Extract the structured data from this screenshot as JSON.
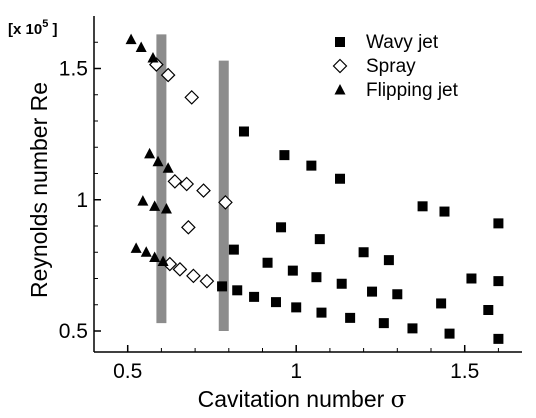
{
  "chart_data": {
    "type": "scatter",
    "xlabel": "Cavitation number",
    "xlabel_symbol": "σ",
    "ylabel": "Reynolds number  Re",
    "y_multiplier": {
      "prefix": "[x 10",
      "exponent": "5",
      "suffix": " ]"
    },
    "xlim": [
      0.4,
      1.67
    ],
    "ylim": [
      0.42,
      1.7
    ],
    "xticks": [
      0.5,
      1,
      1.5
    ],
    "xtick_labels": [
      "0.5",
      "1",
      "1.5"
    ],
    "yticks": [
      0.5,
      1,
      1.5
    ],
    "ytick_labels": [
      "0.5",
      "1",
      "1.5"
    ],
    "grid": false,
    "legend_position": "top-right",
    "bands": [
      {
        "x": 0.6,
        "y_from": 0.53,
        "y_to": 1.63
      },
      {
        "x": 0.785,
        "y_from": 0.5,
        "y_to": 1.53
      }
    ],
    "series": [
      {
        "name": "Wavy jet",
        "marker": "square-filled",
        "points": [
          [
            0.845,
            1.26
          ],
          [
            0.965,
            1.17
          ],
          [
            1.045,
            1.13
          ],
          [
            1.13,
            1.08
          ],
          [
            1.375,
            0.975
          ],
          [
            1.44,
            0.955
          ],
          [
            1.6,
            0.91
          ],
          [
            0.955,
            0.895
          ],
          [
            1.07,
            0.85
          ],
          [
            1.2,
            0.8
          ],
          [
            1.275,
            0.77
          ],
          [
            0.815,
            0.81
          ],
          [
            0.915,
            0.76
          ],
          [
            0.99,
            0.73
          ],
          [
            1.06,
            0.705
          ],
          [
            1.135,
            0.68
          ],
          [
            1.225,
            0.65
          ],
          [
            1.52,
            0.7
          ],
          [
            1.6,
            0.69
          ],
          [
            0.78,
            0.67
          ],
          [
            0.825,
            0.655
          ],
          [
            0.875,
            0.63
          ],
          [
            0.94,
            0.61
          ],
          [
            1.0,
            0.59
          ],
          [
            1.075,
            0.57
          ],
          [
            1.16,
            0.55
          ],
          [
            1.26,
            0.53
          ],
          [
            1.345,
            0.51
          ],
          [
            1.43,
            0.605
          ],
          [
            1.455,
            0.49
          ],
          [
            1.57,
            0.58
          ],
          [
            1.6,
            0.47
          ],
          [
            1.3,
            0.64
          ]
        ]
      },
      {
        "name": "Spray",
        "marker": "diamond-open",
        "points": [
          [
            0.585,
            1.515
          ],
          [
            0.62,
            1.475
          ],
          [
            0.69,
            1.39
          ],
          [
            0.64,
            1.07
          ],
          [
            0.675,
            1.06
          ],
          [
            0.725,
            1.035
          ],
          [
            0.79,
            0.99
          ],
          [
            0.68,
            0.895
          ],
          [
            0.625,
            0.755
          ],
          [
            0.655,
            0.735
          ],
          [
            0.695,
            0.71
          ],
          [
            0.735,
            0.69
          ]
        ]
      },
      {
        "name": "Flipping jet",
        "marker": "triangle-filled",
        "points": [
          [
            0.51,
            1.61
          ],
          [
            0.54,
            1.58
          ],
          [
            0.575,
            1.54
          ],
          [
            0.565,
            1.175
          ],
          [
            0.59,
            1.145
          ],
          [
            0.62,
            1.12
          ],
          [
            0.545,
            0.995
          ],
          [
            0.58,
            0.975
          ],
          [
            0.615,
            0.965
          ],
          [
            0.525,
            0.815
          ],
          [
            0.555,
            0.8
          ],
          [
            0.58,
            0.78
          ],
          [
            0.605,
            0.765
          ]
        ]
      }
    ]
  }
}
